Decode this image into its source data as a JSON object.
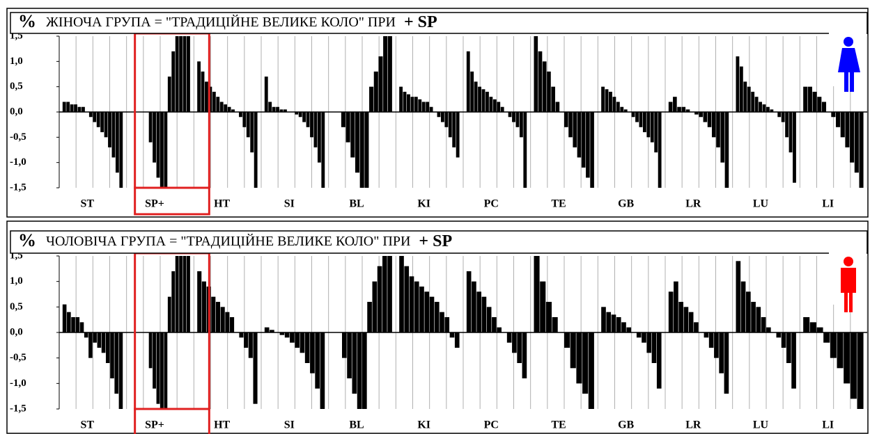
{
  "chart_data": [
    {
      "type": "bar",
      "y_label": "%",
      "title": "ЖІНОЧА ГРУПА  = \"ТРАДИЦІЙНЕ ВЕЛИКЕ КОЛО\" ПРИ",
      "title_suffix": "+ SP",
      "categories": [
        "ST",
        "SP+",
        "HT",
        "SI",
        "BL",
        "KI",
        "PC",
        "TE",
        "GB",
        "LR",
        "LU",
        "LI"
      ],
      "values": [
        [
          0.2,
          0.2,
          0.15,
          0.15,
          0.1,
          0.1,
          0,
          -0.1,
          -0.2,
          -0.3,
          -0.4,
          -0.5,
          -0.7,
          -0.9,
          -1.2,
          -1.5
        ],
        [
          0,
          0,
          0,
          0,
          0,
          -0.6,
          -1.0,
          -1.3,
          -1.5,
          -1.5,
          0.7,
          1.2,
          1.5,
          1.5,
          1.5,
          1.5
        ],
        [
          1.0,
          0.8,
          0.6,
          0.5,
          0.4,
          0.3,
          0.2,
          0.15,
          0.1,
          0.05,
          0,
          -0.1,
          -0.3,
          -0.5,
          -0.8,
          -1.5
        ],
        [
          0.7,
          0.2,
          0.1,
          0.1,
          0.05,
          0.05,
          0,
          0,
          -0.05,
          -0.1,
          -0.2,
          -0.3,
          -0.5,
          -0.7,
          -1.0,
          -1.5
        ],
        [
          0,
          0,
          -0.3,
          -0.6,
          -0.9,
          -1.2,
          -1.5,
          -1.5,
          0.5,
          0.8,
          1.1,
          1.5,
          1.5
        ],
        [
          0.5,
          0.4,
          0.35,
          0.3,
          0.3,
          0.25,
          0.2,
          0.2,
          0.1,
          0,
          -0.1,
          -0.2,
          -0.3,
          -0.5,
          -0.7,
          -0.9
        ],
        [
          1.2,
          0.8,
          0.6,
          0.5,
          0.45,
          0.4,
          0.3,
          0.25,
          0.2,
          0.1,
          0,
          -0.1,
          -0.2,
          -0.3,
          -0.5,
          -1.5
        ],
        [
          1.5,
          1.2,
          1.0,
          0.8,
          0.5,
          0.2,
          0,
          -0.3,
          -0.5,
          -0.7,
          -0.9,
          -1.1,
          -1.3,
          -1.5
        ],
        [
          0.5,
          0.45,
          0.4,
          0.3,
          0.2,
          0.1,
          0.05,
          0,
          -0.1,
          -0.2,
          -0.3,
          -0.4,
          -0.5,
          -0.6,
          -0.8,
          -1.5
        ],
        [
          0.2,
          0.3,
          0.1,
          0.1,
          0.05,
          0,
          -0.05,
          -0.1,
          -0.2,
          -0.3,
          -0.5,
          -0.7,
          -1.0,
          -1.5
        ],
        [
          1.1,
          0.9,
          0.6,
          0.5,
          0.4,
          0.3,
          0.2,
          0.15,
          0.1,
          0.05,
          0,
          -0.1,
          -0.2,
          -0.5,
          -0.8,
          -1.4
        ],
        [
          0.5,
          0.5,
          0.4,
          0.3,
          0.2,
          0,
          -0.1,
          -0.3,
          -0.5,
          -0.7,
          -1.0,
          -1.2,
          -1.5
        ]
      ],
      "color": "#000000",
      "highlight_category": 1,
      "highlight_color": "#e02020",
      "ylim": [
        -1.5,
        1.5
      ],
      "yticks": [
        {
          "value": 1.5,
          "label": "1,5"
        },
        {
          "value": 1,
          "label": "1,0"
        },
        {
          "value": 0.5,
          "label": "0,5"
        },
        {
          "value": 0,
          "label": "0,0"
        },
        {
          "value": -0.5,
          "label": "-0,5"
        },
        {
          "value": -1,
          "label": "-1,0"
        },
        {
          "value": -1.5,
          "label": "-1,5"
        }
      ]
    },
    {
      "type": "bar",
      "y_label": "%",
      "title": "ЧОЛОВІЧА ГРУПА  = \"ТРАДИЦІЙНЕ ВЕЛИКЕ КОЛО\" ПРИ",
      "title_suffix": "+ SP",
      "categories": [
        "ST",
        "SP+",
        "HT",
        "SI",
        "BL",
        "KI",
        "PC",
        "TE",
        "GB",
        "LR",
        "LU",
        "LI"
      ],
      "values": [
        [
          0.55,
          0.4,
          0.3,
          0.3,
          0.2,
          -0.1,
          -0.5,
          -0.2,
          -0.3,
          -0.4,
          -0.6,
          -0.9,
          -1.2,
          -1.5
        ],
        [
          0,
          0,
          0,
          0,
          0,
          -0.7,
          -1.1,
          -1.4,
          -1.5,
          -1.5,
          0.7,
          1.2,
          1.5,
          1.5,
          1.5,
          1.5
        ],
        [
          1.2,
          1.0,
          0.9,
          0.7,
          0.6,
          0.5,
          0.4,
          0.3,
          0,
          -0.1,
          -0.3,
          -0.5,
          -1.4
        ],
        [
          0.1,
          0.05,
          0,
          -0.05,
          -0.1,
          -0.2,
          -0.3,
          -0.4,
          -0.6,
          -0.8,
          -1.1,
          -1.5
        ],
        [
          0,
          0,
          -0.5,
          -0.9,
          -1.2,
          -1.5,
          -1.5,
          0.6,
          1.0,
          1.3,
          1.5,
          1.5
        ],
        [
          1.5,
          1.3,
          1.1,
          1.0,
          0.9,
          0.8,
          0.7,
          0.6,
          0.4,
          0.3,
          -0.1,
          -0.3
        ],
        [
          1.2,
          1.0,
          0.8,
          0.7,
          0.5,
          0.3,
          0.1,
          0,
          -0.2,
          -0.4,
          -0.6,
          -0.9
        ],
        [
          1.5,
          1.0,
          0.6,
          0.3,
          0,
          -0.3,
          -0.7,
          -1.0,
          -1.2,
          -1.5
        ],
        [
          0.5,
          0.4,
          0.35,
          0.3,
          0.2,
          0.1,
          0,
          -0.1,
          -0.2,
          -0.4,
          -0.6,
          -1.1
        ],
        [
          0.8,
          1.0,
          0.6,
          0.5,
          0.4,
          0.2,
          0,
          -0.1,
          -0.3,
          -0.5,
          -0.8,
          -1.2
        ],
        [
          1.4,
          1.0,
          0.8,
          0.6,
          0.5,
          0.3,
          0.1,
          0,
          -0.1,
          -0.3,
          -0.6,
          -1.1
        ],
        [
          0.3,
          0.2,
          0.1,
          -0.2,
          -0.5,
          -0.7,
          -1.0,
          -1.3,
          -1.5
        ]
      ],
      "color": "#000000",
      "highlight_category": 1,
      "highlight_color": "#e02020",
      "ylim": [
        -1.5,
        1.5
      ],
      "yticks": [
        {
          "value": 1.5,
          "label": "1,5"
        },
        {
          "value": 1,
          "label": "1,0"
        },
        {
          "value": 0.5,
          "label": "0,5"
        },
        {
          "value": 0,
          "label": "0,0"
        },
        {
          "value": -0.5,
          "label": "-0,5"
        },
        {
          "value": -1,
          "label": "-1,0"
        },
        {
          "value": -1.5,
          "label": "-1,5"
        }
      ]
    }
  ]
}
